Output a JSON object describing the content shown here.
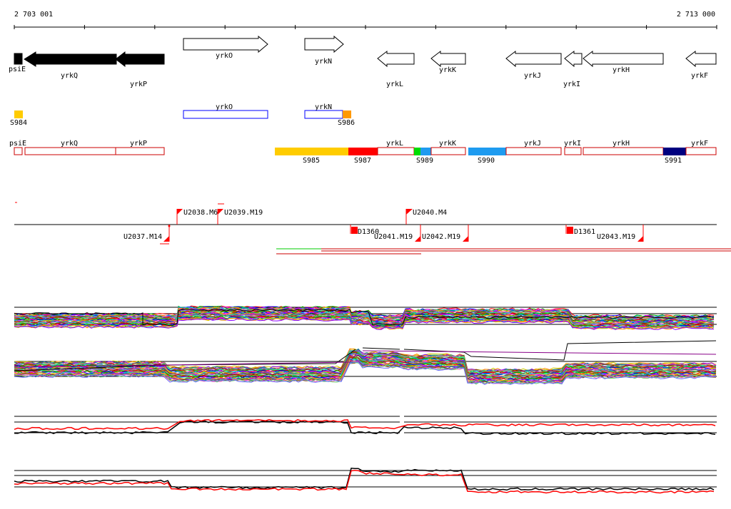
{
  "coordinates": {
    "start": "2 703 001",
    "end": "2 713 000"
  },
  "genes": [
    {
      "name": "psiE",
      "strand": "-",
      "style": "filled"
    },
    {
      "name": "yrkQ",
      "strand": "-",
      "style": "filled"
    },
    {
      "name": "yrkP",
      "strand": "-",
      "style": "filled"
    },
    {
      "name": "yrkO",
      "strand": "+",
      "style": "open"
    },
    {
      "name": "yrkN",
      "strand": "+",
      "style": "open"
    },
    {
      "name": "yrkL",
      "strand": "-",
      "style": "open"
    },
    {
      "name": "yrkK",
      "strand": "-",
      "style": "open"
    },
    {
      "name": "yrkJ",
      "strand": "-",
      "style": "open"
    },
    {
      "name": "yrkI",
      "strand": "-",
      "style": "open"
    },
    {
      "name": "yrkH",
      "strand": "-",
      "style": "open"
    },
    {
      "name": "yrkF",
      "strand": "-",
      "style": "open"
    }
  ],
  "plus_strand_track": {
    "genes": [
      "yrkO",
      "yrkN"
    ],
    "segments": [
      {
        "label": "S984",
        "color": "#ffcc00"
      },
      {
        "label": "S986",
        "color": "#ff9900"
      }
    ]
  },
  "minus_strand_track": {
    "genes": [
      "psiE",
      "yrkQ",
      "yrkP",
      "yrkL",
      "yrkK",
      "yrkJ",
      "yrkI",
      "yrkH",
      "yrkF"
    ],
    "segments": [
      {
        "label": "S985",
        "color": "#ffcc00"
      },
      {
        "label": "S987",
        "color": "#ff0000"
      },
      {
        "label": "S989",
        "color": "#00dd00"
      },
      {
        "label": "S990",
        "color": "#1e9bf0"
      },
      {
        "label": "S991",
        "color": "#000080"
      }
    ]
  },
  "features": [
    {
      "label": "U2038.M6",
      "strand": "+"
    },
    {
      "label": "U2039.M19",
      "strand": "+"
    },
    {
      "label": "U2040.M4",
      "strand": "+"
    },
    {
      "label": "U2037.M14",
      "strand": "-"
    },
    {
      "label": "D1360",
      "strand": "-"
    },
    {
      "label": "U2041.M19",
      "strand": "-"
    },
    {
      "label": "U2042.M19",
      "strand": "-"
    },
    {
      "label": "D1361",
      "strand": "-"
    },
    {
      "label": "U2043.M19",
      "strand": "-"
    }
  ],
  "colors": {
    "annotation": "#ff0000",
    "open_outline": "#000000",
    "plus_box_outline": "#0000ff",
    "minus_box_outline": "#cc0000",
    "summary_line_a": "#000000",
    "summary_line_b": "#ff0000"
  }
}
